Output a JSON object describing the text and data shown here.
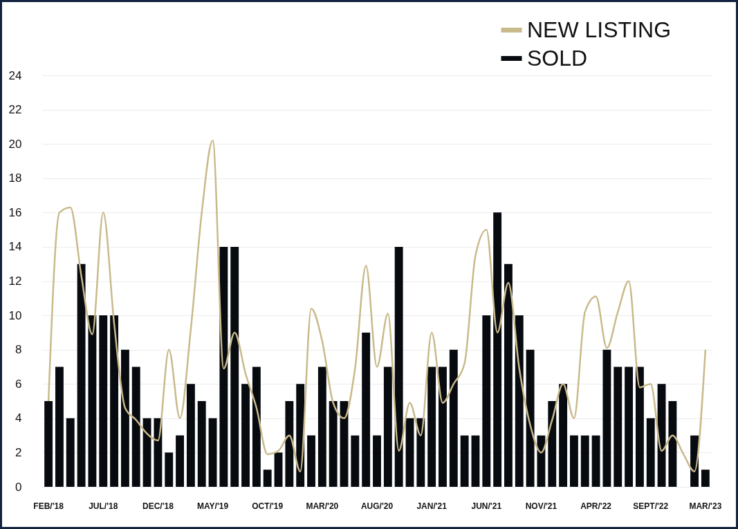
{
  "chart_data": {
    "type": "bar",
    "categories": [
      "FEB/'18",
      null,
      null,
      null,
      null,
      "JUL/'18",
      null,
      null,
      null,
      null,
      "DEC/'18",
      null,
      null,
      null,
      null,
      "MAY/'19",
      null,
      null,
      null,
      null,
      "OCT/'19",
      null,
      null,
      null,
      null,
      "MAR/'20",
      null,
      null,
      null,
      null,
      "AUG/'20",
      null,
      null,
      null,
      null,
      "JAN/'21",
      null,
      null,
      null,
      null,
      "JUN/'21",
      null,
      null,
      null,
      null,
      "NOV/'21",
      null,
      null,
      null,
      null,
      "APR/'22",
      null,
      null,
      null,
      null,
      "SEPT/'22",
      null,
      null,
      null,
      null,
      "MAR/'23"
    ],
    "series": [
      {
        "name": "NEW LISTING",
        "type": "line",
        "color": "#c9ba8b",
        "values": [
          5,
          16,
          16.3,
          12.3,
          8.9,
          16,
          9.5,
          4.6,
          3.9,
          3.1,
          2.7,
          8,
          4,
          9.2,
          16,
          20.2,
          6.9,
          9,
          6.6,
          4.6,
          1.9,
          2.1,
          3,
          0.9,
          10.4,
          8.5,
          4.9,
          4,
          6.9,
          12.9,
          7,
          10.1,
          2.1,
          4.9,
          3,
          9,
          4.9,
          6,
          7.2,
          13.5,
          15,
          9,
          11.9,
          6.9,
          3.6,
          2,
          3.9,
          6,
          4,
          10.2,
          11.1,
          8.1,
          10.2,
          12,
          5.8,
          6,
          2.1,
          3,
          1.9,
          0.9,
          8
        ]
      },
      {
        "name": "SOLD",
        "type": "bar",
        "color": "#070a0f",
        "values": [
          5,
          7,
          4,
          13,
          10,
          10,
          10,
          8,
          7,
          4,
          4,
          2,
          3,
          6,
          5,
          4,
          14,
          14,
          6,
          7,
          1,
          2,
          5,
          6,
          3,
          7,
          5,
          5,
          3,
          9,
          3,
          7,
          14,
          4,
          4,
          7,
          7,
          8,
          3,
          3,
          10,
          16,
          13,
          10,
          8,
          3,
          5,
          6,
          3,
          3,
          3,
          8,
          7,
          7,
          7,
          4,
          6,
          5,
          0,
          3,
          1
        ]
      }
    ],
    "ylim": [
      0,
      24
    ],
    "yticks": [
      0,
      2,
      4,
      6,
      8,
      10,
      12,
      14,
      16,
      18,
      20,
      22,
      24
    ],
    "grid": "y",
    "legend": "top right"
  }
}
